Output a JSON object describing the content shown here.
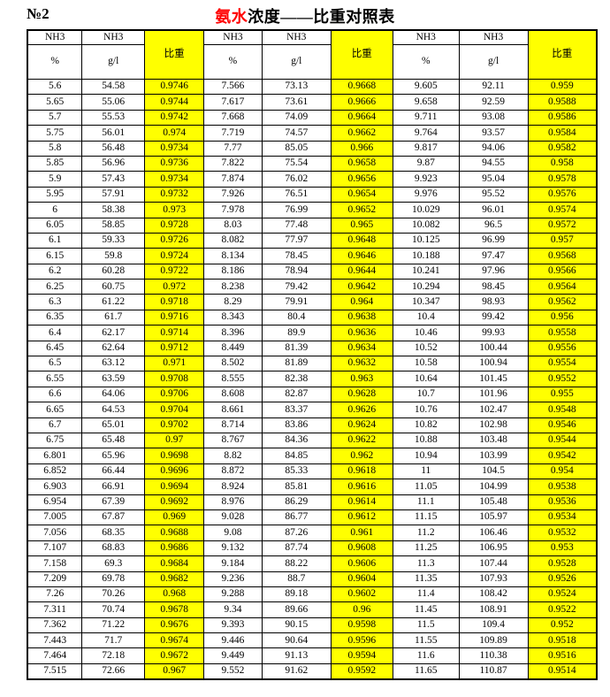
{
  "page": {
    "number_label": "№2",
    "title": {
      "red_part": "氨水",
      "black_part": "浓度——比重对照表"
    }
  },
  "colors": {
    "highlight": "#ffff00",
    "title_accent_red": "#ff0000",
    "border": "#000000"
  },
  "table": {
    "headers": {
      "nh3": "NH3",
      "percent": "%",
      "gram_per_liter": "g/l",
      "specific_gravity": "比重"
    },
    "rows": [
      [
        "5.6",
        "54.58",
        "0.9746",
        "7.566",
        "73.13",
        "0.9668",
        "9.605",
        "92.11",
        "0.959"
      ],
      [
        "5.65",
        "55.06",
        "0.9744",
        "7.617",
        "73.61",
        "0.9666",
        "9.658",
        "92.59",
        "0.9588"
      ],
      [
        "5.7",
        "55.53",
        "0.9742",
        "7.668",
        "74.09",
        "0.9664",
        "9.711",
        "93.08",
        "0.9586"
      ],
      [
        "5.75",
        "56.01",
        "0.974",
        "7.719",
        "74.57",
        "0.9662",
        "9.764",
        "93.57",
        "0.9584"
      ],
      [
        "5.8",
        "56.48",
        "0.9734",
        "7.77",
        "85.05",
        "0.966",
        "9.817",
        "94.06",
        "0.9582"
      ],
      [
        "5.85",
        "56.96",
        "0.9736",
        "7.822",
        "75.54",
        "0.9658",
        "9.87",
        "94.55",
        "0.958"
      ],
      [
        "5.9",
        "57.43",
        "0.9734",
        "7.874",
        "76.02",
        "0.9656",
        "9.923",
        "95.04",
        "0.9578"
      ],
      [
        "5.95",
        "57.91",
        "0.9732",
        "7.926",
        "76.51",
        "0.9654",
        "9.976",
        "95.52",
        "0.9576"
      ],
      [
        "6",
        "58.38",
        "0.973",
        "7.978",
        "76.99",
        "0.9652",
        "10.029",
        "96.01",
        "0.9574"
      ],
      [
        "6.05",
        "58.85",
        "0.9728",
        "8.03",
        "77.48",
        "0.965",
        "10.082",
        "96.5",
        "0.9572"
      ],
      [
        "6.1",
        "59.33",
        "0.9726",
        "8.082",
        "77.97",
        "0.9648",
        "10.125",
        "96.99",
        "0.957"
      ],
      [
        "6.15",
        "59.8",
        "0.9724",
        "8.134",
        "78.45",
        "0.9646",
        "10.188",
        "97.47",
        "0.9568"
      ],
      [
        "6.2",
        "60.28",
        "0.9722",
        "8.186",
        "78.94",
        "0.9644",
        "10.241",
        "97.96",
        "0.9566"
      ],
      [
        "6.25",
        "60.75",
        "0.972",
        "8.238",
        "79.42",
        "0.9642",
        "10.294",
        "98.45",
        "0.9564"
      ],
      [
        "6.3",
        "61.22",
        "0.9718",
        "8.29",
        "79.91",
        "0.964",
        "10.347",
        "98.93",
        "0.9562"
      ],
      [
        "6.35",
        "61.7",
        "0.9716",
        "8.343",
        "80.4",
        "0.9638",
        "10.4",
        "99.42",
        "0.956"
      ],
      [
        "6.4",
        "62.17",
        "0.9714",
        "8.396",
        "89.9",
        "0.9636",
        "10.46",
        "99.93",
        "0.9558"
      ],
      [
        "6.45",
        "62.64",
        "0.9712",
        "8.449",
        "81.39",
        "0.9634",
        "10.52",
        "100.44",
        "0.9556"
      ],
      [
        "6.5",
        "63.12",
        "0.971",
        "8.502",
        "81.89",
        "0.9632",
        "10.58",
        "100.94",
        "0.9554"
      ],
      [
        "6.55",
        "63.59",
        "0.9708",
        "8.555",
        "82.38",
        "0.963",
        "10.64",
        "101.45",
        "0.9552"
      ],
      [
        "6.6",
        "64.06",
        "0.9706",
        "8.608",
        "82.87",
        "0.9628",
        "10.7",
        "101.96",
        "0.955"
      ],
      [
        "6.65",
        "64.53",
        "0.9704",
        "8.661",
        "83.37",
        "0.9626",
        "10.76",
        "102.47",
        "0.9548"
      ],
      [
        "6.7",
        "65.01",
        "0.9702",
        "8.714",
        "83.86",
        "0.9624",
        "10.82",
        "102.98",
        "0.9546"
      ],
      [
        "6.75",
        "65.48",
        "0.97",
        "8.767",
        "84.36",
        "0.9622",
        "10.88",
        "103.48",
        "0.9544"
      ],
      [
        "6.801",
        "65.96",
        "0.9698",
        "8.82",
        "84.85",
        "0.962",
        "10.94",
        "103.99",
        "0.9542"
      ],
      [
        "6.852",
        "66.44",
        "0.9696",
        "8.872",
        "85.33",
        "0.9618",
        "11",
        "104.5",
        "0.954"
      ],
      [
        "6.903",
        "66.91",
        "0.9694",
        "8.924",
        "85.81",
        "0.9616",
        "11.05",
        "104.99",
        "0.9538"
      ],
      [
        "6.954",
        "67.39",
        "0.9692",
        "8.976",
        "86.29",
        "0.9614",
        "11.1",
        "105.48",
        "0.9536"
      ],
      [
        "7.005",
        "67.87",
        "0.969",
        "9.028",
        "86.77",
        "0.9612",
        "11.15",
        "105.97",
        "0.9534"
      ],
      [
        "7.056",
        "68.35",
        "0.9688",
        "9.08",
        "87.26",
        "0.961",
        "11.2",
        "106.46",
        "0.9532"
      ],
      [
        "7.107",
        "68.83",
        "0.9686",
        "9.132",
        "87.74",
        "0.9608",
        "11.25",
        "106.95",
        "0.953"
      ],
      [
        "7.158",
        "69.3",
        "0.9684",
        "9.184",
        "88.22",
        "0.9606",
        "11.3",
        "107.44",
        "0.9528"
      ],
      [
        "7.209",
        "69.78",
        "0.9682",
        "9.236",
        "88.7",
        "0.9604",
        "11.35",
        "107.93",
        "0.9526"
      ],
      [
        "7.26",
        "70.26",
        "0.968",
        "9.288",
        "89.18",
        "0.9602",
        "11.4",
        "108.42",
        "0.9524"
      ],
      [
        "7.311",
        "70.74",
        "0.9678",
        "9.34",
        "89.66",
        "0.96",
        "11.45",
        "108.91",
        "0.9522"
      ],
      [
        "7.362",
        "71.22",
        "0.9676",
        "9.393",
        "90.15",
        "0.9598",
        "11.5",
        "109.4",
        "0.952"
      ],
      [
        "7.443",
        "71.7",
        "0.9674",
        "9.446",
        "90.64",
        "0.9596",
        "11.55",
        "109.89",
        "0.9518"
      ],
      [
        "7.464",
        "72.18",
        "0.9672",
        "9.449",
        "91.13",
        "0.9594",
        "11.6",
        "110.38",
        "0.9516"
      ],
      [
        "7.515",
        "72.66",
        "0.967",
        "9.552",
        "91.62",
        "0.9592",
        "11.65",
        "110.87",
        "0.9514"
      ]
    ]
  }
}
